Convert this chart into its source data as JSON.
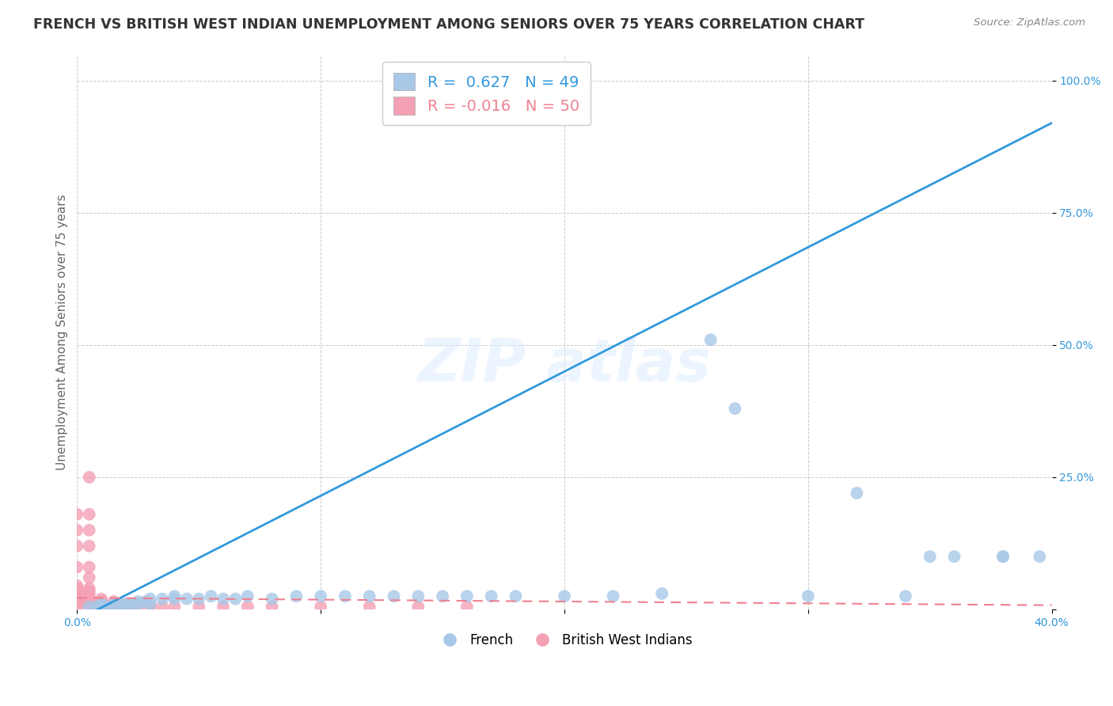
{
  "title": "FRENCH VS BRITISH WEST INDIAN UNEMPLOYMENT AMONG SENIORS OVER 75 YEARS CORRELATION CHART",
  "source": "Source: ZipAtlas.com",
  "ylabel": "Unemployment Among Seniors over 75 years",
  "xlim": [
    0.0,
    0.4
  ],
  "ylim": [
    0.0,
    1.05
  ],
  "french_R": "0.627",
  "french_N": "49",
  "bwi_R": "-0.016",
  "bwi_N": "50",
  "french_color": "#a8c8e8",
  "bwi_color": "#f4a0b5",
  "french_line_color": "#3399dd",
  "bwi_line_color": "#f08090",
  "french_scatter": [
    [
      0.005,
      0.005
    ],
    [
      0.008,
      0.005
    ],
    [
      0.01,
      0.005
    ],
    [
      0.01,
      0.01
    ],
    [
      0.012,
      0.005
    ],
    [
      0.015,
      0.005
    ],
    [
      0.015,
      0.01
    ],
    [
      0.018,
      0.01
    ],
    [
      0.02,
      0.005
    ],
    [
      0.02,
      0.01
    ],
    [
      0.022,
      0.01
    ],
    [
      0.025,
      0.01
    ],
    [
      0.025,
      0.015
    ],
    [
      0.028,
      0.015
    ],
    [
      0.03,
      0.01
    ],
    [
      0.03,
      0.02
    ],
    [
      0.035,
      0.02
    ],
    [
      0.04,
      0.02
    ],
    [
      0.04,
      0.025
    ],
    [
      0.045,
      0.02
    ],
    [
      0.05,
      0.02
    ],
    [
      0.055,
      0.025
    ],
    [
      0.06,
      0.02
    ],
    [
      0.065,
      0.02
    ],
    [
      0.07,
      0.025
    ],
    [
      0.08,
      0.02
    ],
    [
      0.09,
      0.025
    ],
    [
      0.1,
      0.025
    ],
    [
      0.11,
      0.025
    ],
    [
      0.12,
      0.025
    ],
    [
      0.13,
      0.025
    ],
    [
      0.14,
      0.025
    ],
    [
      0.15,
      0.025
    ],
    [
      0.16,
      0.025
    ],
    [
      0.17,
      0.025
    ],
    [
      0.18,
      0.025
    ],
    [
      0.2,
      0.025
    ],
    [
      0.22,
      0.025
    ],
    [
      0.24,
      0.03
    ],
    [
      0.26,
      0.51
    ],
    [
      0.27,
      0.38
    ],
    [
      0.3,
      0.025
    ],
    [
      0.32,
      0.22
    ],
    [
      0.34,
      0.025
    ],
    [
      0.35,
      0.1
    ],
    [
      0.36,
      0.1
    ],
    [
      0.38,
      0.1
    ],
    [
      0.38,
      0.1
    ],
    [
      0.395,
      0.1
    ]
  ],
  "bwi_scatter": [
    [
      0.0,
      0.005
    ],
    [
      0.0,
      0.01
    ],
    [
      0.0,
      0.015
    ],
    [
      0.0,
      0.02
    ],
    [
      0.0,
      0.025
    ],
    [
      0.0,
      0.03
    ],
    [
      0.0,
      0.035
    ],
    [
      0.0,
      0.04
    ],
    [
      0.0,
      0.045
    ],
    [
      0.005,
      0.005
    ],
    [
      0.005,
      0.01
    ],
    [
      0.005,
      0.015
    ],
    [
      0.005,
      0.02
    ],
    [
      0.005,
      0.025
    ],
    [
      0.005,
      0.03
    ],
    [
      0.005,
      0.035
    ],
    [
      0.005,
      0.04
    ],
    [
      0.01,
      0.005
    ],
    [
      0.01,
      0.01
    ],
    [
      0.01,
      0.015
    ],
    [
      0.01,
      0.02
    ],
    [
      0.015,
      0.005
    ],
    [
      0.015,
      0.01
    ],
    [
      0.015,
      0.015
    ],
    [
      0.02,
      0.005
    ],
    [
      0.02,
      0.01
    ],
    [
      0.025,
      0.005
    ],
    [
      0.025,
      0.01
    ],
    [
      0.03,
      0.005
    ],
    [
      0.03,
      0.01
    ],
    [
      0.035,
      0.005
    ],
    [
      0.04,
      0.005
    ],
    [
      0.05,
      0.005
    ],
    [
      0.06,
      0.005
    ],
    [
      0.07,
      0.005
    ],
    [
      0.08,
      0.005
    ],
    [
      0.1,
      0.005
    ],
    [
      0.12,
      0.005
    ],
    [
      0.14,
      0.005
    ],
    [
      0.16,
      0.005
    ],
    [
      0.005,
      0.25
    ],
    [
      0.005,
      0.18
    ],
    [
      0.005,
      0.15
    ],
    [
      0.005,
      0.12
    ],
    [
      0.005,
      0.08
    ],
    [
      0.005,
      0.06
    ],
    [
      0.0,
      0.18
    ],
    [
      0.0,
      0.15
    ],
    [
      0.0,
      0.12
    ],
    [
      0.0,
      0.08
    ]
  ],
  "background_color": "#ffffff",
  "grid_color": "#cccccc",
  "title_fontsize": 12.5,
  "label_fontsize": 11,
  "tick_fontsize": 10,
  "legend_fontsize": 14
}
